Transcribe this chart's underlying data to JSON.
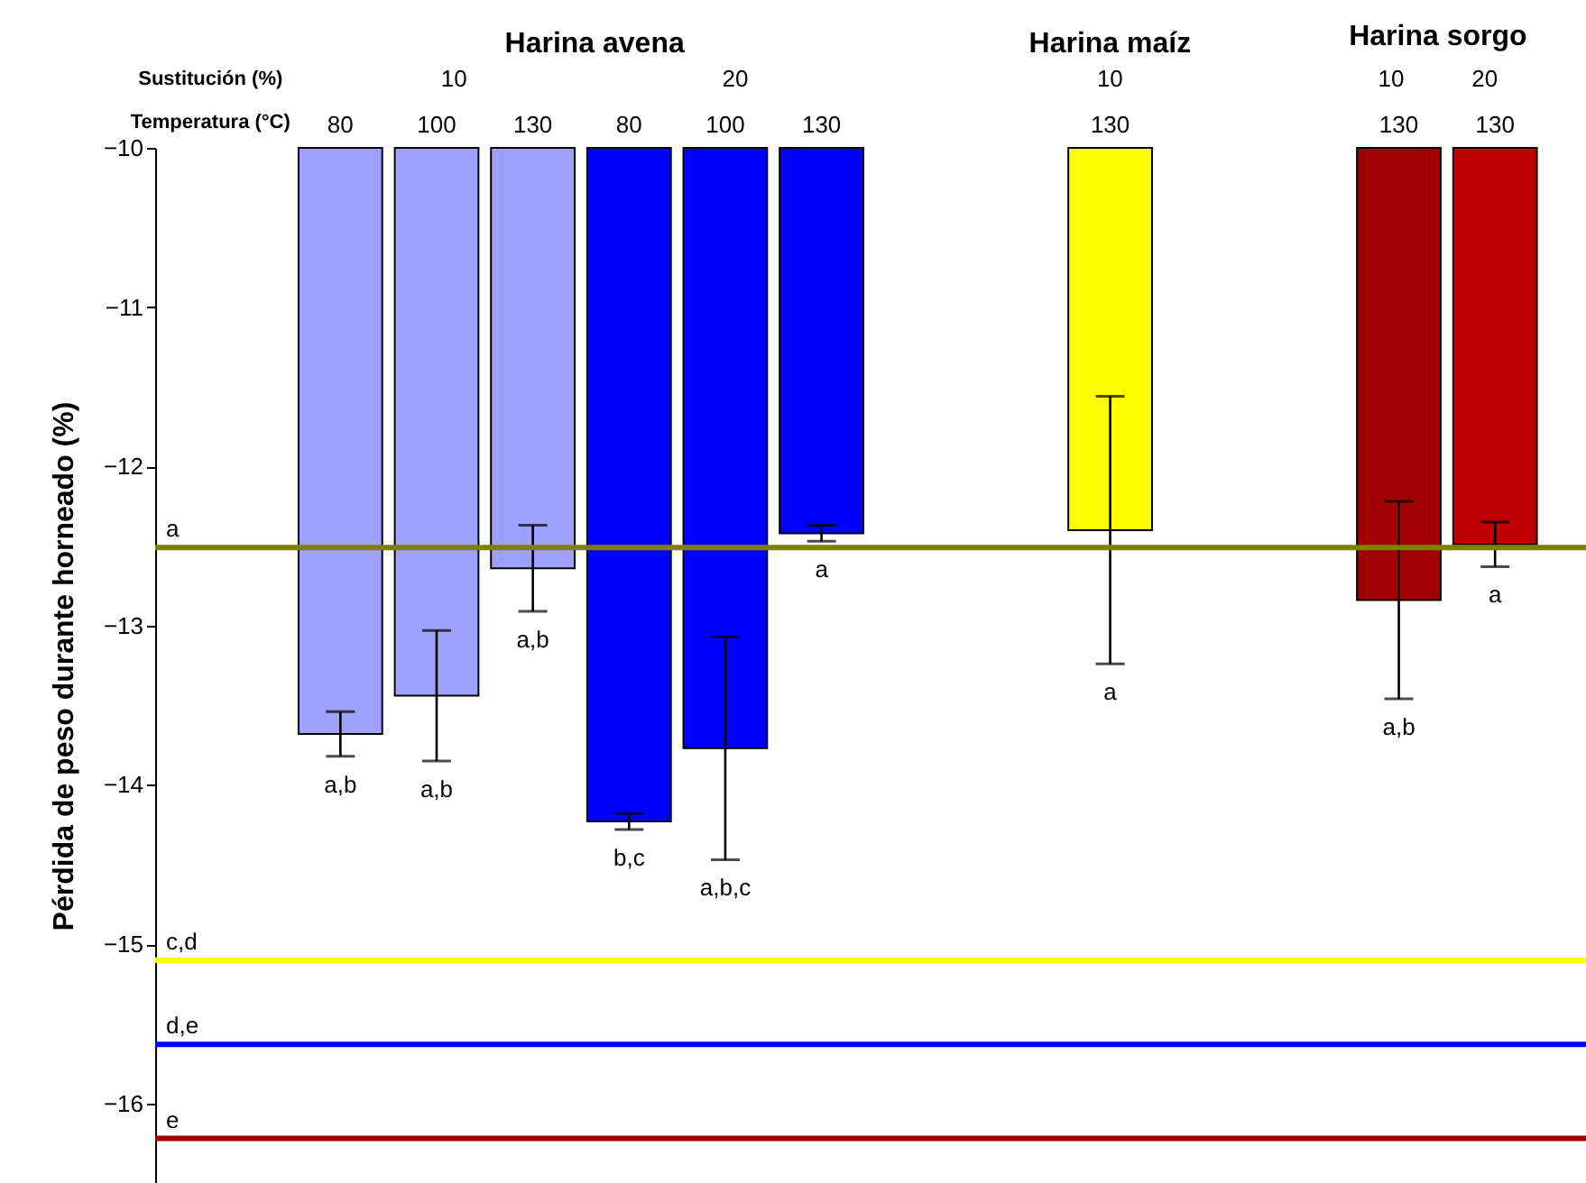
{
  "chart_data": {
    "type": "bar",
    "ylabel": "Pérdida de peso durante horneado (%)",
    "categories": [
      "80",
      "100",
      "130",
      "80",
      "100",
      "130",
      null,
      null,
      "130",
      null,
      null,
      "130",
      "130"
    ],
    "values": [
      -13.68,
      -13.44,
      -12.64,
      -14.23,
      -13.77,
      -12.42,
      null,
      null,
      -12.4,
      null,
      null,
      -12.84,
      -12.49
    ],
    "colors": [
      "#a0a0ff",
      "#a0a0ff",
      "#a0a0ff",
      "#0000ff",
      "#0000ff",
      "#0000ff",
      null,
      null,
      "#ffff00",
      null,
      null,
      "#a00000",
      "#c00000"
    ],
    "errors": [
      0.14,
      0.41,
      0.27,
      0.05,
      0.7,
      0.05,
      null,
      null,
      0.84,
      null,
      null,
      0.62,
      0.14
    ],
    "ylim": [
      -16.5,
      -10
    ],
    "yticks": [
      -16,
      -15,
      -14,
      -13,
      -12,
      -11,
      -10
    ],
    "ref_lines": [
      {
        "axis": "y",
        "value": -12.51,
        "label": "a",
        "color": "#808000"
      },
      {
        "axis": "y",
        "value": -15.1,
        "label": "c,d",
        "color": "#ffff00"
      },
      {
        "axis": "y",
        "value": -15.63,
        "label": "d,e",
        "color": "#0000ff"
      },
      {
        "axis": "y",
        "value": -16.22,
        "label": "e",
        "color": "#a00000"
      }
    ],
    "annotations": [
      "Harina avena",
      "Harina maíz",
      "Harina sorgo",
      "Sustitución (%)",
      "10",
      "20",
      "10",
      "10",
      "20",
      "Temperatura (°C)",
      "a,b",
      "a,b",
      "a,b",
      "b,c",
      "a,b,c",
      "a",
      "a",
      "a,b",
      "a"
    ],
    "grid": false
  }
}
